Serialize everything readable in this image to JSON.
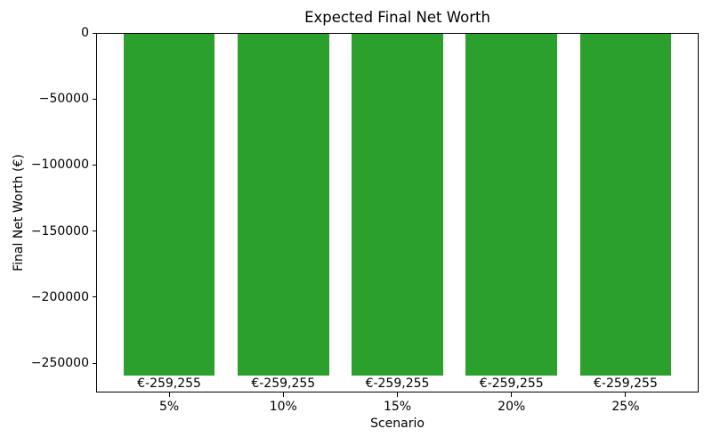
{
  "chart_data": {
    "type": "bar",
    "title": "Expected Final Net Worth",
    "xlabel": "Scenario",
    "ylabel": "Final Net Worth (€)",
    "categories": [
      "5%",
      "10%",
      "15%",
      "20%",
      "25%"
    ],
    "values": [
      -259255,
      -259255,
      -259255,
      -259255,
      -259255
    ],
    "bar_labels": [
      "€-259,255",
      "€-259,255",
      "€-259,255",
      "€-259,255",
      "€-259,255"
    ],
    "bar_color": "#2ca02c",
    "background_color": "#ffffff",
    "text_color": "#000000",
    "ylim": [
      -272218,
      0
    ],
    "yticks": [
      0,
      -50000,
      -100000,
      -150000,
      -200000,
      -250000
    ],
    "ytick_labels": [
      "0",
      "−50000",
      "−100000",
      "−150000",
      "−200000",
      "−250000"
    ],
    "grid": false,
    "legend": null
  }
}
